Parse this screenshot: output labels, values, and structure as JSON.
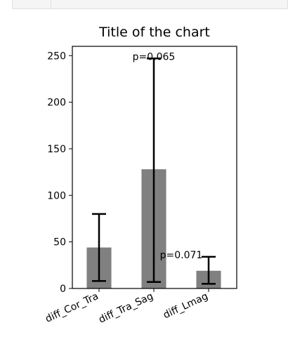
{
  "chart_data": {
    "type": "bar",
    "title": "Title of the chart",
    "xlabel": "",
    "ylabel": "",
    "categories": [
      "diff_Cor_Tra",
      "diff_Tra_Sag",
      "diff_Lmag"
    ],
    "values": [
      44,
      128,
      19
    ],
    "error_low": [
      8,
      7,
      5
    ],
    "error_high": [
      80,
      247,
      34
    ],
    "ylim": [
      0,
      260
    ],
    "yticks": [
      0,
      50,
      100,
      150,
      200,
      250
    ],
    "bar_color": "#808080",
    "annotations": [
      {
        "text": "p=0.065",
        "x_between": [
          0,
          2
        ],
        "y": 250
      },
      {
        "text": "p=0.071",
        "x_between": [
          1,
          2
        ],
        "y": 37
      }
    ],
    "grid": false
  }
}
